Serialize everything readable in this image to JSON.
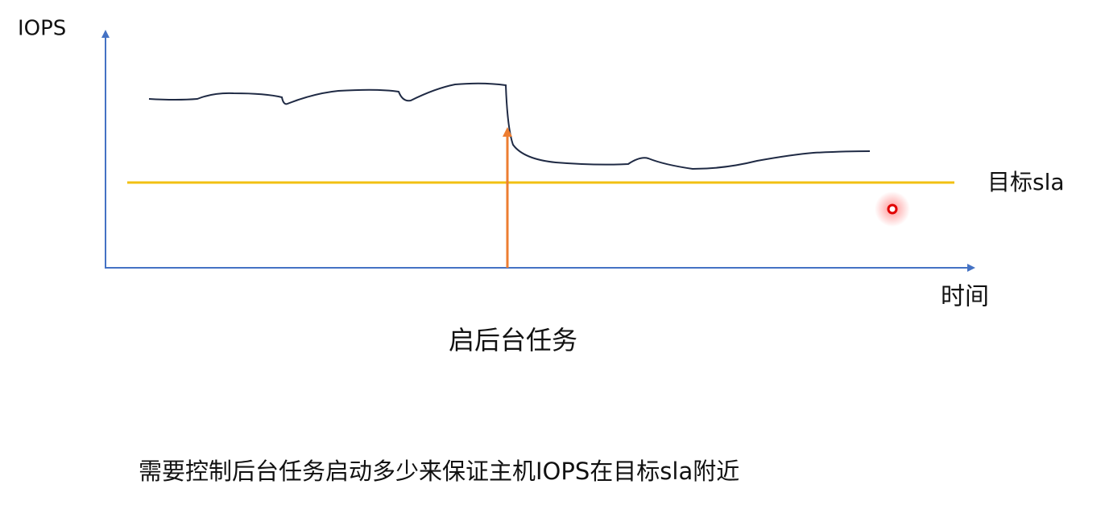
{
  "diagram": {
    "y_axis_label": "IOPS",
    "x_axis_label": "时间",
    "target_line_label": "目标sla",
    "event_label": "启后台任务"
  },
  "caption": "需要控制后台任务启动多少来保证主机IOPS在目标sla附近"
}
